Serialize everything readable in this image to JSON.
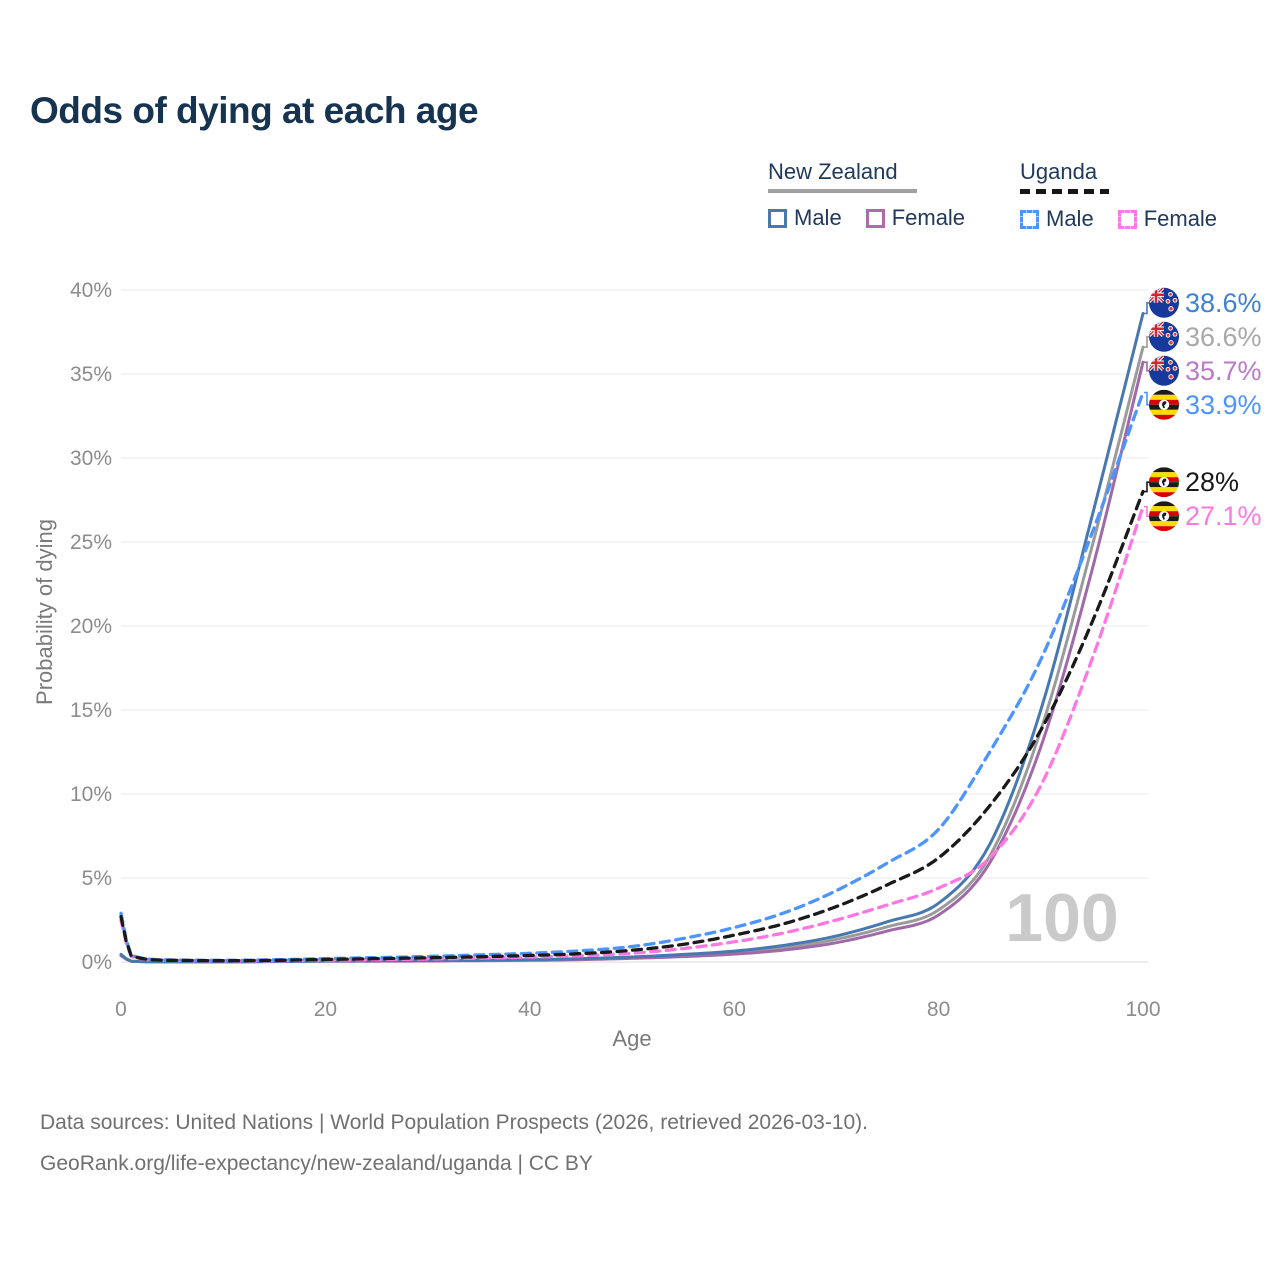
{
  "title": "Odds of dying at each age",
  "legend": {
    "groups": [
      {
        "label": "New Zealand",
        "line_style": "solid",
        "underline_color": "#a0a0a0",
        "items": [
          {
            "label": "Male",
            "color": "#4878b0"
          },
          {
            "label": "Female",
            "color": "#b06aa5"
          }
        ]
      },
      {
        "label": "Uganda",
        "line_style": "dashed",
        "underline_color": "#161616",
        "items": [
          {
            "label": "Male",
            "color": "#4d94ff"
          },
          {
            "label": "Female",
            "color": "#ff77e2"
          }
        ]
      }
    ]
  },
  "chart_data": {
    "type": "line",
    "title": "Odds of dying at each age",
    "xlabel": "Age",
    "ylabel": "Probability of dying",
    "xlim": [
      0,
      100
    ],
    "ylim": [
      0,
      40
    ],
    "x_ticks": [
      "0",
      "20",
      "40",
      "60",
      "80",
      "100"
    ],
    "y_ticks": [
      "0%",
      "5%",
      "10%",
      "15%",
      "20%",
      "25%",
      "30%",
      "35%",
      "40%"
    ],
    "grid": "horizontal",
    "legend_position": "top-right",
    "watermark": "100",
    "ages": [
      0,
      1,
      5,
      10,
      15,
      20,
      25,
      30,
      35,
      40,
      45,
      50,
      55,
      60,
      65,
      70,
      75,
      80,
      85,
      90,
      95,
      100
    ],
    "unit": "percent",
    "series": [
      {
        "name": "New Zealand",
        "color": "#9b9b9b",
        "label_color": "#a8a8a8",
        "dash": false,
        "flag": "nz",
        "end_label": "36.6%",
        "end_value": 36.6,
        "values": [
          0.42,
          0.045,
          0.009,
          0.01,
          0.03,
          0.055,
          0.065,
          0.075,
          0.095,
          0.12,
          0.17,
          0.26,
          0.38,
          0.55,
          0.85,
          1.35,
          2.1,
          3.1,
          6.3,
          13.8,
          24.7,
          36.6
        ]
      },
      {
        "name": "New Zealand — Female",
        "color": "#a06aa8",
        "label_color": "#bb79c9",
        "dash": false,
        "flag": "nz",
        "end_label": "35.7%",
        "end_value": 35.7,
        "values": [
          0.38,
          0.04,
          0.008,
          0.009,
          0.025,
          0.04,
          0.05,
          0.06,
          0.08,
          0.1,
          0.14,
          0.22,
          0.32,
          0.47,
          0.72,
          1.15,
          1.85,
          2.8,
          5.9,
          12.8,
          23.3,
          35.7
        ]
      },
      {
        "name": "New Zealand — Male",
        "color": "#4878b0",
        "label_color": "#3f80d8",
        "dash": false,
        "flag": "nz",
        "end_label": "38.6%",
        "end_value": 38.6,
        "values": [
          0.45,
          0.05,
          0.01,
          0.012,
          0.04,
          0.07,
          0.08,
          0.09,
          0.11,
          0.14,
          0.2,
          0.3,
          0.45,
          0.65,
          1.0,
          1.55,
          2.4,
          3.5,
          7.0,
          15.0,
          26.5,
          38.6
        ]
      },
      {
        "name": "Uganda — Female",
        "color": "#ff77e2",
        "label_color": "#ff77e2",
        "dash": true,
        "flag": "ug",
        "end_label": "27.1%",
        "end_value": 27.1,
        "values": [
          2.5,
          0.33,
          0.09,
          0.07,
          0.08,
          0.11,
          0.14,
          0.18,
          0.23,
          0.29,
          0.38,
          0.52,
          0.8,
          1.2,
          1.75,
          2.5,
          3.4,
          4.4,
          6.2,
          10.5,
          18.0,
          27.1
        ]
      },
      {
        "name": "Uganda — Male",
        "color": "#4d94ff",
        "label_color": "#4d94ff",
        "dash": true,
        "flag": "ug",
        "end_label": "33.9%",
        "end_value": 33.9,
        "values": [
          2.9,
          0.4,
          0.12,
          0.1,
          0.13,
          0.2,
          0.26,
          0.33,
          0.42,
          0.52,
          0.67,
          0.92,
          1.4,
          2.05,
          2.95,
          4.25,
          5.9,
          7.9,
          12.5,
          18.0,
          25.5,
          33.9
        ]
      },
      {
        "name": "Uganda",
        "color": "#1a1a1a",
        "label_color": "#1a1a1a",
        "dash": true,
        "flag": "ug",
        "end_label": "28%",
        "end_value": 28.0,
        "values": [
          2.7,
          0.37,
          0.1,
          0.08,
          0.1,
          0.15,
          0.2,
          0.25,
          0.31,
          0.39,
          0.5,
          0.7,
          1.05,
          1.6,
          2.3,
          3.3,
          4.6,
          6.2,
          9.3,
          13.8,
          20.2,
          28.0
        ]
      }
    ]
  },
  "footer": {
    "line1": "Data sources: United Nations | World Population Prospects (2026, retrieved 2026-03-10).",
    "line2": "GeoRank.org/life-expectancy/new-zealand/uganda | CC BY"
  }
}
